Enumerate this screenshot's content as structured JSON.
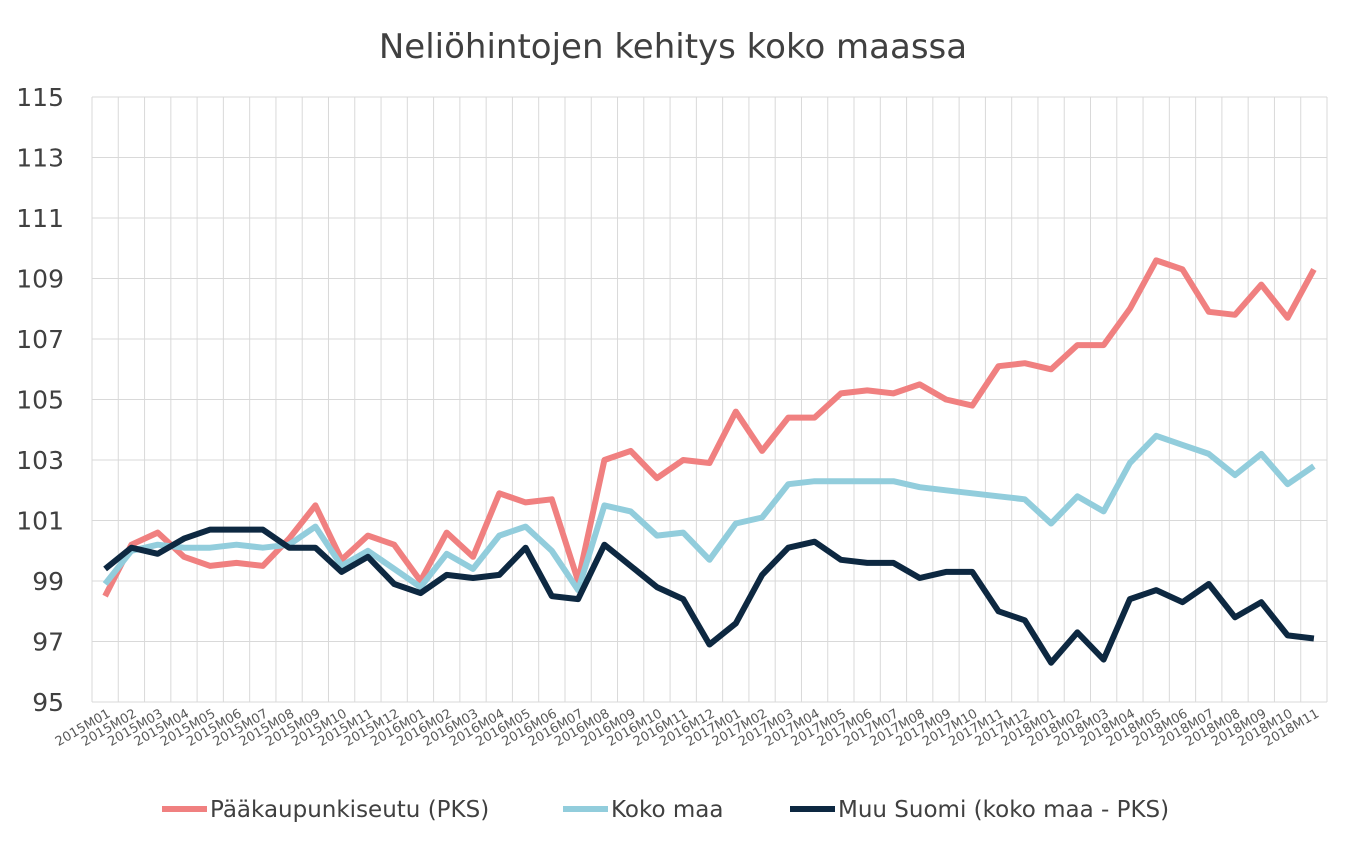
{
  "chart_data": {
    "type": "line",
    "title": "Neliöhintojen kehitys koko maassa",
    "xlabel": "",
    "ylabel": "",
    "ylim": [
      95,
      115
    ],
    "yticks": [
      "95",
      "97",
      "99",
      "101",
      "103",
      "105",
      "107",
      "109",
      "111",
      "113",
      "115"
    ],
    "grid": true,
    "legend_position": "bottom",
    "categories": [
      "2015M01",
      "2015M02",
      "2015M03",
      "2015M04",
      "2015M05",
      "2015M06",
      "2015M07",
      "2015M08",
      "2015M09",
      "2015M10",
      "2015M11",
      "2015M12",
      "2016M01",
      "2016M02",
      "2016M03",
      "2016M04",
      "2016M05",
      "2016M06",
      "2016M07",
      "2016M08",
      "2016M09",
      "2016M10",
      "2016M11",
      "2016M12",
      "2017M01",
      "2017M02",
      "2017M03",
      "2017M04",
      "2017M05",
      "2017M06",
      "2017M07",
      "2017M08",
      "2017M09",
      "2017M10",
      "2017M11",
      "2017M12",
      "2018M01",
      "2018M02",
      "2018M03",
      "2018M04",
      "2018M05",
      "2018M06",
      "2018M07",
      "2018M08",
      "2018M09",
      "2018M10",
      "2018M11"
    ],
    "series": [
      {
        "name": "Pääkaupunkiseutu (PKS)",
        "color": "#f08080",
        "values": [
          98.5,
          100.2,
          100.6,
          99.8,
          99.5,
          99.6,
          99.5,
          100.4,
          101.5,
          99.7,
          100.5,
          100.2,
          99.0,
          100.6,
          99.8,
          101.9,
          101.6,
          101.7,
          99.0,
          103.0,
          103.3,
          102.4,
          103.0,
          102.9,
          104.6,
          103.3,
          104.4,
          104.4,
          105.2,
          105.3,
          105.2,
          105.5,
          105.0,
          104.8,
          106.1,
          106.2,
          106.0,
          106.8,
          106.8,
          108.0,
          109.6,
          109.3,
          107.9,
          107.8,
          108.8,
          107.7,
          109.3
        ]
      },
      {
        "name": "Koko maa",
        "color": "#92cddc",
        "values": [
          98.9,
          100.0,
          100.2,
          100.1,
          100.1,
          100.2,
          100.1,
          100.2,
          100.8,
          99.5,
          100.0,
          99.4,
          98.8,
          99.9,
          99.4,
          100.5,
          100.8,
          100.0,
          98.7,
          101.5,
          101.3,
          100.5,
          100.6,
          99.7,
          100.9,
          101.1,
          102.2,
          102.3,
          102.3,
          102.3,
          102.3,
          102.1,
          102.0,
          101.9,
          101.8,
          101.7,
          100.9,
          101.8,
          101.3,
          102.9,
          103.8,
          103.5,
          103.2,
          102.5,
          103.2,
          102.2,
          102.8
        ]
      },
      {
        "name": "Muu Suomi (koko maa - PKS)",
        "color": "#0d2841",
        "values": [
          99.4,
          100.1,
          99.9,
          100.4,
          100.7,
          100.7,
          100.7,
          100.1,
          100.1,
          99.3,
          99.8,
          98.9,
          98.6,
          99.2,
          99.1,
          99.2,
          100.1,
          98.5,
          98.4,
          100.2,
          99.5,
          98.8,
          98.4,
          96.9,
          97.6,
          99.2,
          100.1,
          100.3,
          99.7,
          99.6,
          99.6,
          99.1,
          99.3,
          99.3,
          98.0,
          97.7,
          96.3,
          97.3,
          96.4,
          98.4,
          98.7,
          98.3,
          98.9,
          97.8,
          98.3,
          97.2,
          97.1
        ]
      }
    ]
  }
}
